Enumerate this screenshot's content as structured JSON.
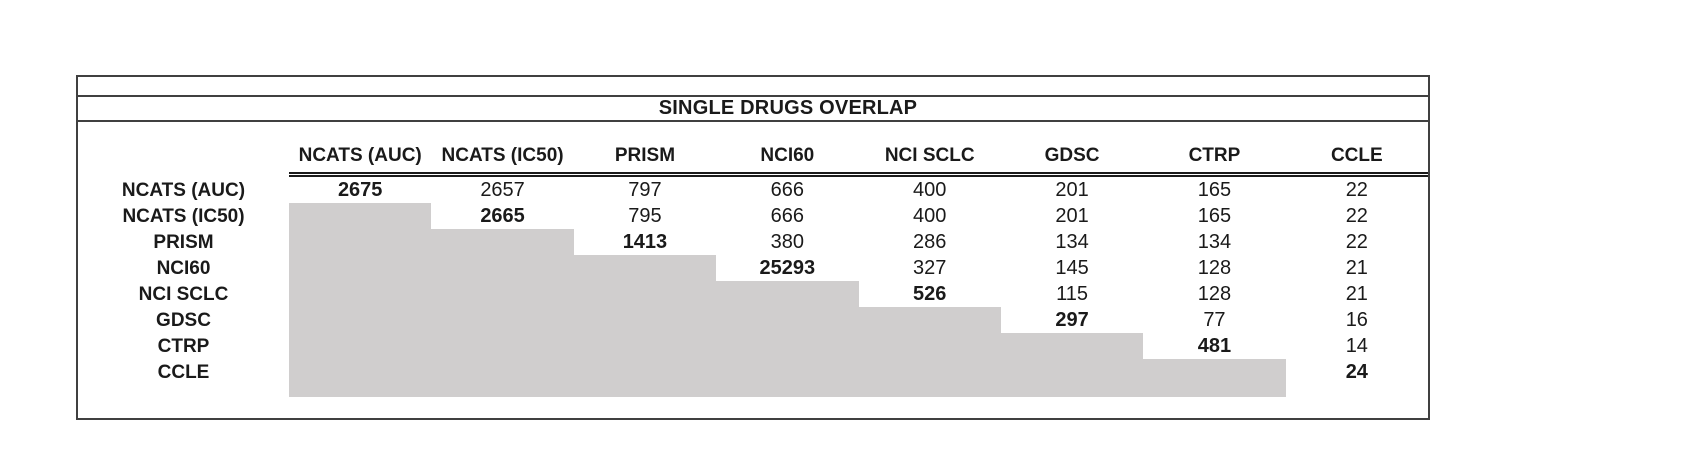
{
  "table": {
    "title": "SINGLE DRUGS OVERLAP",
    "columns": [
      "NCATS (AUC)",
      "NCATS (IC50)",
      "PRISM",
      "NCI60",
      "NCI SCLC",
      "GDSC",
      "CTRP",
      "CCLE"
    ],
    "rows": [
      {
        "label": "NCATS (AUC)",
        "values": [
          "2675",
          "2657",
          "797",
          "666",
          "400",
          "201",
          "165",
          "22"
        ]
      },
      {
        "label": "NCATS (IC50)",
        "values": [
          null,
          "2665",
          "795",
          "666",
          "400",
          "201",
          "165",
          "22"
        ]
      },
      {
        "label": "PRISM",
        "values": [
          null,
          null,
          "1413",
          "380",
          "286",
          "134",
          "134",
          "22"
        ]
      },
      {
        "label": "NCI60",
        "values": [
          null,
          null,
          null,
          "25293",
          "327",
          "145",
          "128",
          "21"
        ]
      },
      {
        "label": "NCI SCLC",
        "values": [
          null,
          null,
          null,
          null,
          "526",
          "115",
          "128",
          "21"
        ]
      },
      {
        "label": "GDSC",
        "values": [
          null,
          null,
          null,
          null,
          null,
          "297",
          "77",
          "16"
        ]
      },
      {
        "label": "CTRP",
        "values": [
          null,
          null,
          null,
          null,
          null,
          null,
          "481",
          "14"
        ]
      },
      {
        "label": "CCLE",
        "values": [
          null,
          null,
          null,
          null,
          null,
          null,
          null,
          "24"
        ]
      }
    ],
    "colors": {
      "lower_triangle_fill": "#d0cece",
      "border": "#404040",
      "text": "#1a1a1a"
    }
  }
}
